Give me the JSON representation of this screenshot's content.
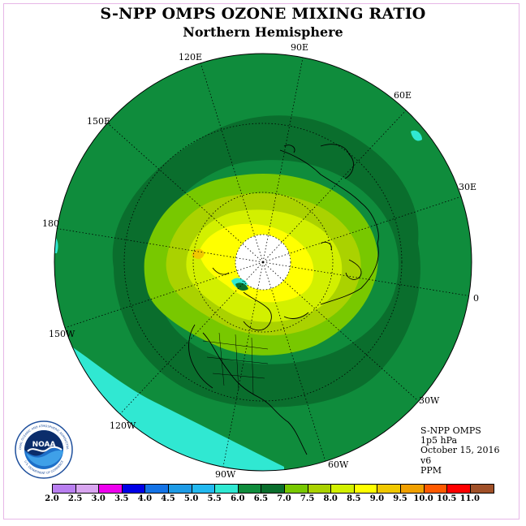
{
  "title": "S-NPP OMPS OZONE MIXING RATIO",
  "subtitle": "Northern Hemisphere",
  "longitude_labels": [
    "90E",
    "60E",
    "30E",
    "0",
    "30W",
    "60W",
    "90W",
    "120W",
    "150W",
    "180",
    "150E",
    "120E"
  ],
  "info": {
    "line1": "S-NPP OMPS",
    "line2": "1p5 hPa",
    "line3": "October 15, 2016",
    "line4": "v6",
    "line5": "PPM"
  },
  "logo": {
    "center_text": "NOAA",
    "ring_top": "NATIONAL OCEANIC AND ATMOSPHERIC ADMINISTRATION",
    "ring_bottom": "U.S. DEPARTMENT OF COMMERCE"
  },
  "colorbar": {
    "ticks": [
      "2.0",
      "2.5",
      "3.0",
      "3.5",
      "4.0",
      "4.5",
      "5.0",
      "5.5",
      "6.0",
      "6.5",
      "7.0",
      "7.5",
      "8.0",
      "8.5",
      "9.0",
      "9.5",
      "10.0",
      "10.5",
      "11.0"
    ],
    "colors": [
      "#b97ff0",
      "#d9a6f0",
      "#ee00ee",
      "#0000e6",
      "#1473e6",
      "#1e9be6",
      "#23b9f0",
      "#30e8d2",
      "#0f8c3c",
      "#0a6e2d",
      "#78c800",
      "#aad200",
      "#d2f000",
      "#ffff00",
      "#f0c800",
      "#f0a000",
      "#ff5a00",
      "#ff0000",
      "#a05028"
    ]
  },
  "legend_colors": {
    "c55_60": "#30e8d2",
    "c60_65": "#0f8c3c",
    "c65_70": "#0a6e2d",
    "c70_75": "#78c800",
    "c75_80": "#aad200",
    "c80_85": "#d2f000",
    "c85_90": "#ffff00",
    "c90_95": "#f0c800"
  }
}
